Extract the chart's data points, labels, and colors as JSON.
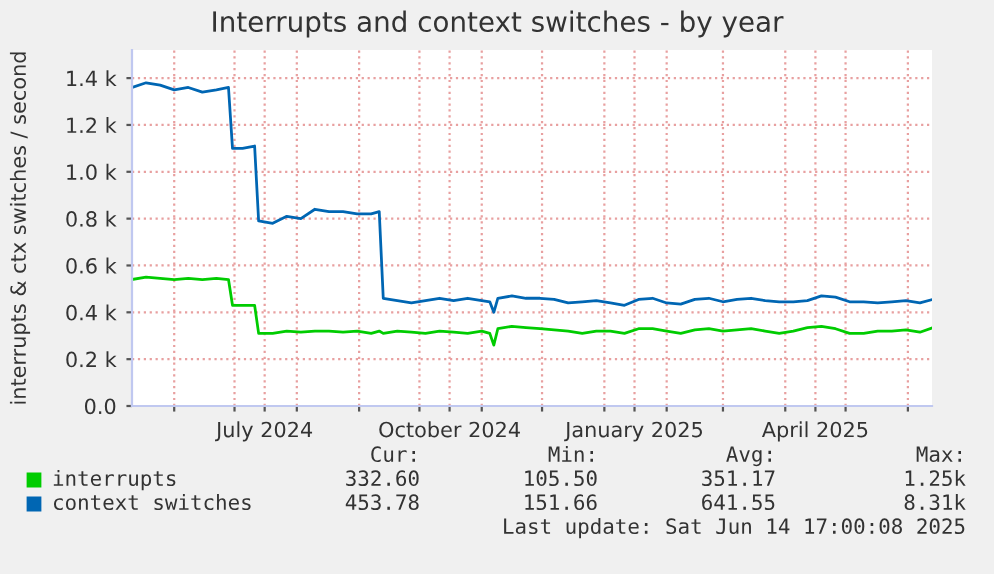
{
  "chart_data": {
    "type": "line",
    "title": "Interrupts and context switches - by year",
    "ylabel": "interrupts & ctx switches / second",
    "x": [
      "2024-05-11",
      "2024-05-18",
      "2024-05-25",
      "2024-06-01",
      "2024-06-08",
      "2024-06-15",
      "2024-06-22",
      "2024-06-28",
      "2024-06-30",
      "2024-07-05",
      "2024-07-11",
      "2024-07-13",
      "2024-07-20",
      "2024-07-27",
      "2024-08-03",
      "2024-08-10",
      "2024-08-17",
      "2024-08-24",
      "2024-08-31",
      "2024-09-07",
      "2024-09-11",
      "2024-09-13",
      "2024-09-20",
      "2024-09-27",
      "2024-10-04",
      "2024-10-11",
      "2024-10-18",
      "2024-10-25",
      "2024-11-01",
      "2024-11-05",
      "2024-11-07",
      "2024-11-09",
      "2024-11-16",
      "2024-11-23",
      "2024-11-30",
      "2024-12-07",
      "2024-12-14",
      "2024-12-21",
      "2024-12-28",
      "2025-01-04",
      "2025-01-11",
      "2025-01-18",
      "2025-01-25",
      "2025-02-01",
      "2025-02-08",
      "2025-02-15",
      "2025-02-22",
      "2025-03-01",
      "2025-03-08",
      "2025-03-15",
      "2025-03-22",
      "2025-03-29",
      "2025-04-05",
      "2025-04-12",
      "2025-04-19",
      "2025-04-26",
      "2025-05-03",
      "2025-05-10",
      "2025-05-17",
      "2025-05-24",
      "2025-05-31",
      "2025-06-07",
      "2025-06-13"
    ],
    "series": [
      {
        "name": "interrupts",
        "color": "#00cc00",
        "values": [
          540,
          550,
          545,
          540,
          545,
          540,
          545,
          540,
          430,
          430,
          430,
          310,
          310,
          320,
          315,
          320,
          320,
          315,
          320,
          310,
          320,
          310,
          320,
          315,
          310,
          320,
          315,
          310,
          320,
          310,
          260,
          330,
          340,
          335,
          330,
          325,
          320,
          310,
          320,
          320,
          310,
          330,
          330,
          320,
          310,
          325,
          330,
          320,
          325,
          330,
          320,
          310,
          320,
          335,
          340,
          330,
          310,
          310,
          320,
          320,
          325,
          315,
          333
        ]
      },
      {
        "name": "context switches",
        "color": "#0066b3",
        "values": [
          1360,
          1380,
          1370,
          1350,
          1360,
          1340,
          1350,
          1360,
          1100,
          1100,
          1110,
          790,
          780,
          810,
          800,
          840,
          830,
          830,
          820,
          820,
          830,
          460,
          450,
          440,
          450,
          460,
          450,
          460,
          450,
          445,
          400,
          460,
          470,
          460,
          460,
          455,
          440,
          445,
          450,
          440,
          430,
          455,
          460,
          440,
          435,
          455,
          460,
          445,
          455,
          460,
          450,
          445,
          445,
          450,
          470,
          465,
          445,
          445,
          440,
          445,
          450,
          440,
          454
        ]
      }
    ],
    "xlim": [
      "2024-05-11",
      "2025-06-13"
    ],
    "xticks": [
      {
        "value": "2024-06-01",
        "label": null
      },
      {
        "value": "2024-07-01",
        "label": null
      },
      {
        "value": "2024-07-16",
        "label": "July 2024"
      },
      {
        "value": "2024-08-01",
        "label": null
      },
      {
        "value": "2024-09-01",
        "label": null
      },
      {
        "value": "2024-10-01",
        "label": null
      },
      {
        "value": "2024-10-16",
        "label": "October 2024"
      },
      {
        "value": "2024-11-01",
        "label": null
      },
      {
        "value": "2024-12-01",
        "label": null
      },
      {
        "value": "2025-01-01",
        "label": null
      },
      {
        "value": "2025-01-16",
        "label": "January 2025"
      },
      {
        "value": "2025-02-01",
        "label": null
      },
      {
        "value": "2025-03-01",
        "label": null
      },
      {
        "value": "2025-04-01",
        "label": null
      },
      {
        "value": "2025-04-16",
        "label": "April 2025"
      },
      {
        "value": "2025-05-01",
        "label": null
      },
      {
        "value": "2025-06-01",
        "label": null
      }
    ],
    "ylim": [
      0,
      1520
    ],
    "yticks": [
      {
        "value": 0,
        "label": "0.0"
      },
      {
        "value": 200,
        "label": "0.2 k"
      },
      {
        "value": 400,
        "label": "0.4 k"
      },
      {
        "value": 600,
        "label": "0.6 k"
      },
      {
        "value": 800,
        "label": "0.8 k"
      },
      {
        "value": 1000,
        "label": "1.0 k"
      },
      {
        "value": 1200,
        "label": "1.2 k"
      },
      {
        "value": 1400,
        "label": "1.4 k"
      }
    ],
    "grid": true,
    "legend": "bottom",
    "marker": "none",
    "line_style": "solid",
    "annotations": [
      "Cur:",
      "Min:",
      "Avg:",
      "Max:",
      "332.60",
      "105.50",
      "351.17",
      "1.25k",
      "453.78",
      "151.66",
      "641.55",
      "8.31k",
      "Last update: Sat Jun 14 17:00:08 2025"
    ]
  }
}
